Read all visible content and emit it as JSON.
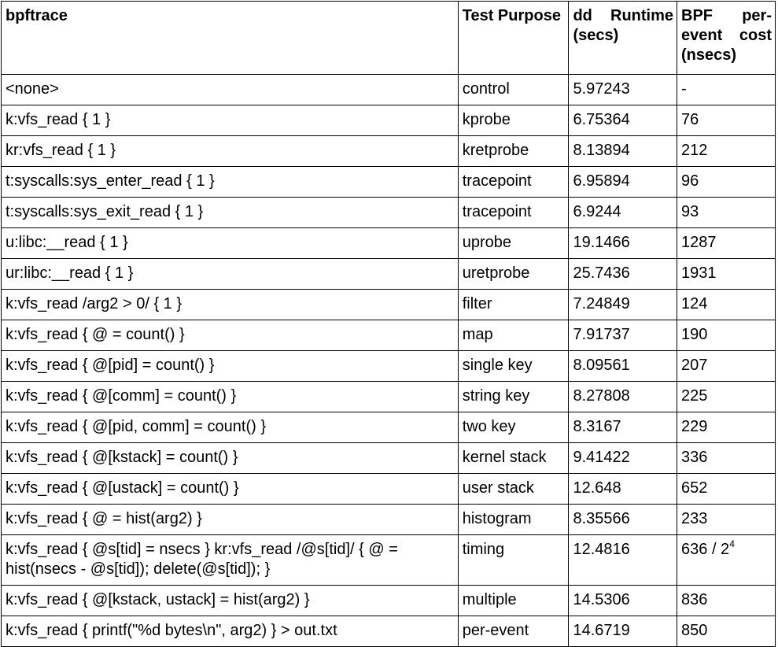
{
  "headers": {
    "bpftrace": "bpftrace",
    "purpose": "Test Purpose",
    "runtime": "dd Runtime (secs)",
    "cost": "BPF per-event cost (nsecs)"
  },
  "rows": [
    {
      "cmd": "<none>",
      "purpose": "control",
      "runtime": "5.97243",
      "cost": "-"
    },
    {
      "cmd": "k:vfs_read { 1 }",
      "purpose": "kprobe",
      "runtime": "6.75364",
      "cost": "76"
    },
    {
      "cmd": "kr:vfs_read { 1 }",
      "purpose": "kretprobe",
      "runtime": "8.13894",
      "cost": "212"
    },
    {
      "cmd": "t:syscalls:sys_enter_read { 1 }",
      "purpose": "tracepoint",
      "runtime": "6.95894",
      "cost": "96"
    },
    {
      "cmd": "t:syscalls:sys_exit_read { 1 }",
      "purpose": "tracepoint",
      "runtime": "6.9244",
      "cost": "93"
    },
    {
      "cmd": "u:libc:__read { 1 }",
      "purpose": "uprobe",
      "runtime": "19.1466",
      "cost": "1287"
    },
    {
      "cmd": "ur:libc:__read { 1 }",
      "purpose": "uretprobe",
      "runtime": "25.7436",
      "cost": "1931"
    },
    {
      "cmd": "k:vfs_read /arg2 > 0/ { 1 }",
      "purpose": "filter",
      "runtime": "7.24849",
      "cost": "124"
    },
    {
      "cmd": "k:vfs_read { @ = count() }",
      "purpose": "map",
      "runtime": "7.91737",
      "cost": "190"
    },
    {
      "cmd": "k:vfs_read { @[pid] = count() }",
      "purpose": "single key",
      "runtime": "8.09561",
      "cost": "207"
    },
    {
      "cmd": "k:vfs_read { @[comm] = count() }",
      "purpose": "string key",
      "runtime": "8.27808",
      "cost": "225"
    },
    {
      "cmd": "k:vfs_read { @[pid, comm] = count() }",
      "purpose": "two key",
      "runtime": "8.3167",
      "cost": "229"
    },
    {
      "cmd": "k:vfs_read { @[kstack] = count() }",
      "purpose": "kernel stack",
      "runtime": "9.41422",
      "cost": "336"
    },
    {
      "cmd": "k:vfs_read { @[ustack] = count() }",
      "purpose": "user stack",
      "runtime": "12.648",
      "cost": "652"
    },
    {
      "cmd": "k:vfs_read { @ = hist(arg2) }",
      "purpose": "histogram",
      "runtime": "8.35566",
      "cost": "233"
    },
    {
      "cmd": "k:vfs_read   { @s[tid] = nsecs } kr:vfs_read /@s[tid]/ { @ = hist(nsecs - @s[tid]); delete(@s[tid]); }",
      "purpose": "timing",
      "runtime": "12.4816",
      "cost": "636 / 2",
      "cost_sup": "4"
    },
    {
      "cmd": "k:vfs_read { @[kstack, ustack] = hist(arg2) }",
      "purpose": "multiple",
      "runtime": "14.5306",
      "cost": "836"
    },
    {
      "cmd": "k:vfs_read { printf(\"%d bytes\\n\", arg2) }   > out.txt",
      "purpose": "per-event",
      "runtime": "14.6719",
      "cost": "850"
    }
  ]
}
